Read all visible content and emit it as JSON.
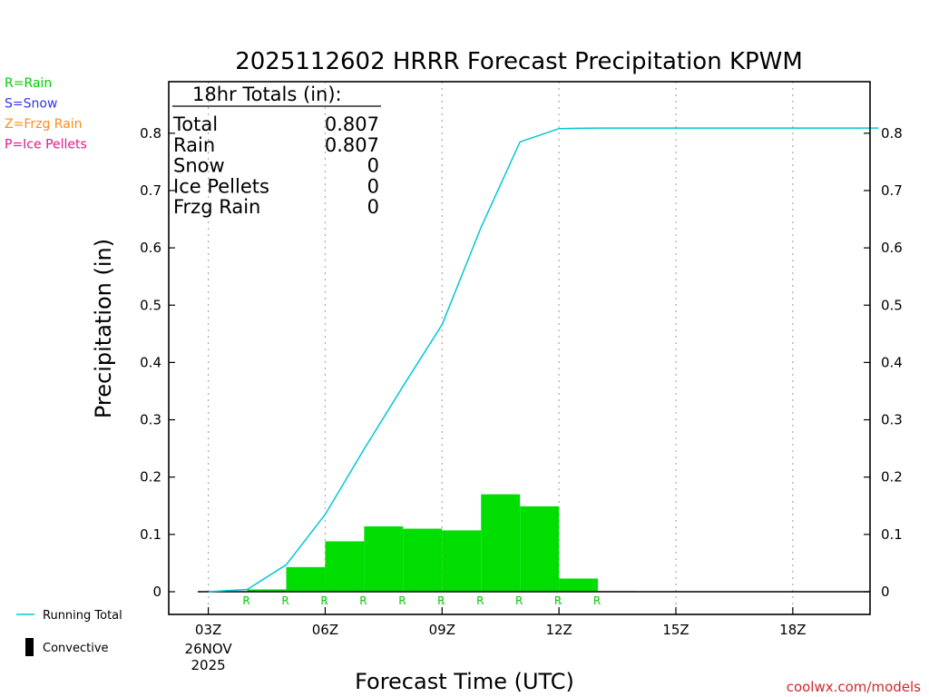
{
  "chart_data": {
    "type": "bar",
    "title": "2025112602 HRRR Forecast Precipitation KPWM",
    "xlabel": "Forecast Time (UTC)",
    "ylabel": "Precipitation (in)",
    "ylim": [
      0,
      0.88
    ],
    "xlim_hours": [
      2.2,
      20.2
    ],
    "y_ticks": [
      "0",
      "0.1",
      "0.2",
      "0.3",
      "0.4",
      "0.5",
      "0.6",
      "0.7",
      "0.8"
    ],
    "x_ticks": [
      {
        "hour": 3,
        "label": "03Z",
        "date": "26NOV",
        "year": "2025"
      },
      {
        "hour": 6,
        "label": "06Z"
      },
      {
        "hour": 9,
        "label": "09Z"
      },
      {
        "hour": 12,
        "label": "12Z"
      },
      {
        "hour": 15,
        "label": "15Z"
      },
      {
        "hour": 18,
        "label": "18Z"
      }
    ],
    "hourly_bars": [
      {
        "start": 3,
        "end": 4,
        "value": 0.0
      },
      {
        "start": 4,
        "end": 5,
        "value": 0.004
      },
      {
        "start": 5,
        "end": 6,
        "value": 0.043
      },
      {
        "start": 6,
        "end": 7,
        "value": 0.088
      },
      {
        "start": 7,
        "end": 8,
        "value": 0.114
      },
      {
        "start": 8,
        "end": 9,
        "value": 0.11
      },
      {
        "start": 9,
        "end": 10,
        "value": 0.107
      },
      {
        "start": 10,
        "end": 11,
        "value": 0.17
      },
      {
        "start": 11,
        "end": 12,
        "value": 0.149
      },
      {
        "start": 12,
        "end": 13,
        "value": 0.023
      },
      {
        "start": 13,
        "end": 14,
        "value": 0.001
      }
    ],
    "precip_type_markers": [
      {
        "hour": 4,
        "label": "R"
      },
      {
        "hour": 5,
        "label": "R"
      },
      {
        "hour": 6,
        "label": "R"
      },
      {
        "hour": 7,
        "label": "R"
      },
      {
        "hour": 8,
        "label": "R"
      },
      {
        "hour": 9,
        "label": "R"
      },
      {
        "hour": 10,
        "label": "R"
      },
      {
        "hour": 11,
        "label": "R"
      },
      {
        "hour": 12,
        "label": "R"
      },
      {
        "hour": 13,
        "label": "R"
      }
    ],
    "running_total": {
      "hours": [
        3,
        4,
        5,
        6,
        7,
        8,
        9,
        10,
        11,
        12,
        13,
        20.2
      ],
      "values": [
        0.0,
        0.004,
        0.047,
        0.135,
        0.249,
        0.359,
        0.466,
        0.636,
        0.785,
        0.808,
        0.809,
        0.809
      ]
    },
    "convective": [],
    "totals_box": {
      "header": "18hr Totals (in):",
      "rows": [
        {
          "label": "Total",
          "value": "0.807"
        },
        {
          "label": "Rain",
          "value": "0.807"
        },
        {
          "label": "Snow",
          "value": "0"
        },
        {
          "label": "Ice Pellets",
          "value": "0"
        },
        {
          "label": "Frzg Rain",
          "value": "0"
        }
      ]
    },
    "legend_types": [
      {
        "text": "R=Rain",
        "color": "#00cc00"
      },
      {
        "text": "S=Snow",
        "color": "#3333ee"
      },
      {
        "text": "Z=Frzg Rain",
        "color": "#ff8c1a"
      },
      {
        "text": "P=Ice Pellets",
        "color": "#e6178c"
      }
    ],
    "legend_lines": [
      {
        "text": "Running Total",
        "color": "#00c8d2"
      },
      {
        "text": "Convective",
        "color": "#000000"
      }
    ],
    "credit": "coolwx.com/models",
    "colors": {
      "bar": "#00dd00",
      "line": "#00c8d2",
      "marker": "#00cc00",
      "credit": "#d22828"
    }
  }
}
